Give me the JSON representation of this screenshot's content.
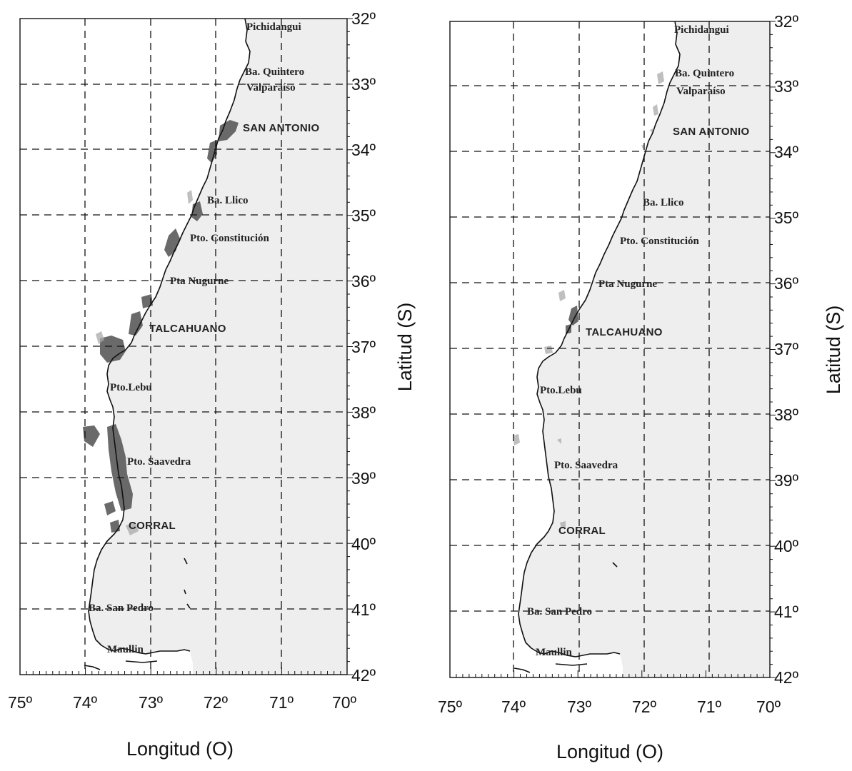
{
  "colors": {
    "land": "#eeeeee",
    "patch_dark": "#5a5a5a",
    "patch_light": "#a9a9a9",
    "ink": "#111111"
  },
  "axes": {
    "xlabel": "Longitud (O)",
    "ylabel": "Latitud (S)",
    "lon_ticks": [
      "75º",
      "74º",
      "73º",
      "72º",
      "71º",
      "70º"
    ],
    "lat_ticks": [
      "32º",
      "33º",
      "33º",
      "34º",
      "35º",
      "36º",
      "37º",
      "38º",
      "39º",
      "40º",
      "41º",
      "42º"
    ]
  },
  "places": {
    "pichidangui": "Pichidangui",
    "quintero": "Ba. Quintero",
    "valparaiso": "Valparaíso",
    "san_antonio": "SAN ANTONIO",
    "llico": "Ba. Llico",
    "constitucion": "Pto. Constitución",
    "nugurne": "Pta Nugurne",
    "talcahuano": "TALCAHUANO",
    "lebu": "Pto.Lebu",
    "saavedra": "Pto. Saavedra",
    "corral": "CORRAL",
    "san_pedro": "Ba. San Pedro",
    "maullin": "Maullin"
  },
  "maps": [
    {
      "id": "left",
      "shaded_areas": "many"
    },
    {
      "id": "right",
      "shaded_areas": "few"
    }
  ]
}
